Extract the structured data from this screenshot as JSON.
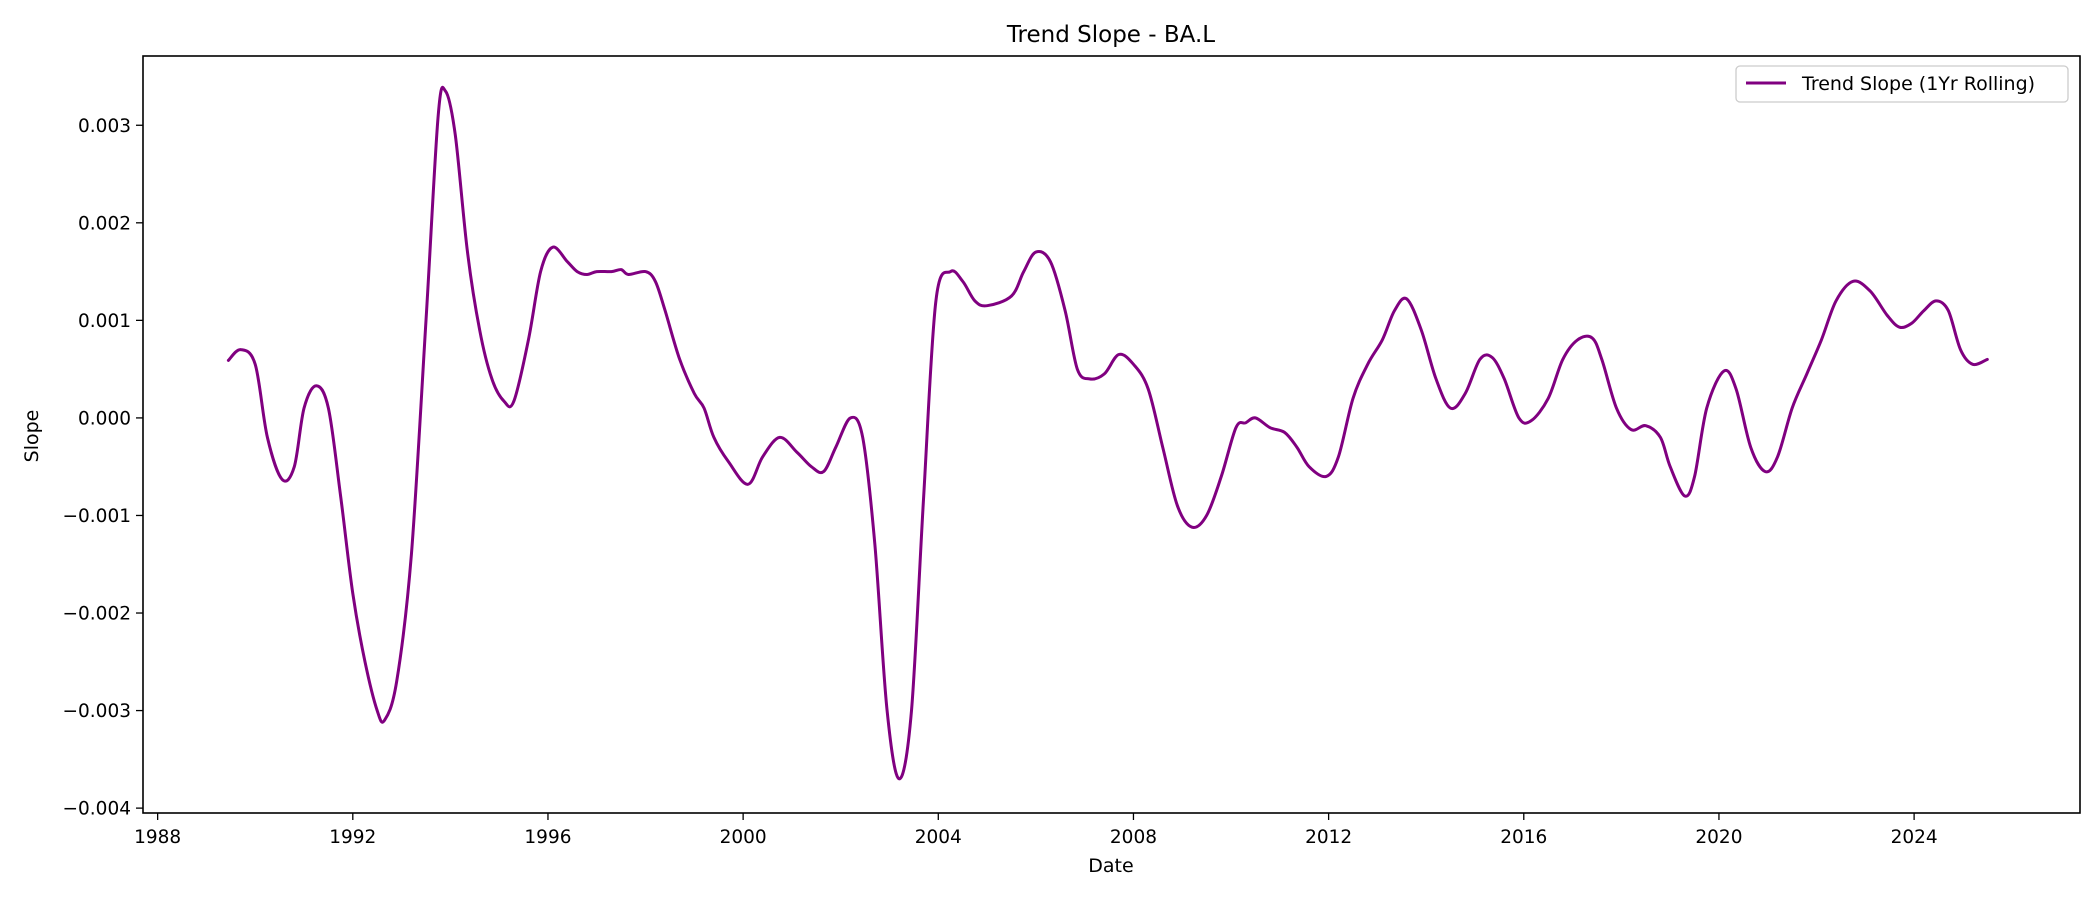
{
  "chart_data": {
    "type": "line",
    "title": "Trend Slope - BA.L",
    "xlabel": "Date",
    "ylabel": "Slope",
    "xlim": [
      1987.7,
      2027.4
    ],
    "ylim": [
      -0.00405,
      0.00371
    ],
    "x_ticks": [
      1988,
      1992,
      1996,
      2000,
      2004,
      2008,
      2012,
      2016,
      2020,
      2024
    ],
    "x_tick_labels": [
      "1988",
      "1992",
      "1996",
      "2000",
      "2004",
      "2008",
      "2012",
      "2016",
      "2020",
      "2024"
    ],
    "y_ticks": [
      -0.004,
      -0.003,
      -0.002,
      -0.001,
      0.0,
      0.001,
      0.002,
      0.003
    ],
    "y_tick_labels": [
      "−0.004",
      "−0.003",
      "−0.002",
      "−0.001",
      "0.000",
      "0.001",
      "0.002",
      "0.003"
    ],
    "grid": false,
    "legend_position": "top-right",
    "series": [
      {
        "name": "Trend Slope (1Yr Rolling)",
        "color": "#800080",
        "points": [
          [
            1989.45,
            0.00059
          ],
          [
            1989.7,
            0.0007
          ],
          [
            1990.0,
            0.00055
          ],
          [
            1990.25,
            -0.0002
          ],
          [
            1990.55,
            -0.00063
          ],
          [
            1990.8,
            -0.0005
          ],
          [
            1991.0,
            0.0001
          ],
          [
            1991.25,
            0.00033
          ],
          [
            1991.5,
            0.0001
          ],
          [
            1991.75,
            -0.0008
          ],
          [
            1992.0,
            -0.0018
          ],
          [
            1992.25,
            -0.0025
          ],
          [
            1992.5,
            -0.003
          ],
          [
            1992.65,
            -0.0031
          ],
          [
            1992.9,
            -0.0027
          ],
          [
            1993.2,
            -0.0014
          ],
          [
            1993.5,
            0.001
          ],
          [
            1993.75,
            0.0031
          ],
          [
            1993.9,
            0.00335
          ],
          [
            1994.1,
            0.0029
          ],
          [
            1994.35,
            0.0017
          ],
          [
            1994.6,
            0.0009
          ],
          [
            1994.85,
            0.0004
          ],
          [
            1995.1,
            0.00017
          ],
          [
            1995.3,
            0.00017
          ],
          [
            1995.6,
            0.0008
          ],
          [
            1995.85,
            0.0015
          ],
          [
            1996.1,
            0.00175
          ],
          [
            1996.4,
            0.0016
          ],
          [
            1996.6,
            0.0015
          ],
          [
            1996.8,
            0.00147
          ],
          [
            1997.0,
            0.0015
          ],
          [
            1997.3,
            0.0015
          ],
          [
            1997.5,
            0.00152
          ],
          [
            1997.65,
            0.00147
          ],
          [
            1998.0,
            0.0015
          ],
          [
            1998.2,
            0.0014
          ],
          [
            1998.4,
            0.0011
          ],
          [
            1998.7,
            0.0006
          ],
          [
            1999.0,
            0.00025
          ],
          [
            1999.2,
            0.0001
          ],
          [
            1999.4,
            -0.0002
          ],
          [
            1999.7,
            -0.00045
          ],
          [
            2000.1,
            -0.00068
          ],
          [
            2000.4,
            -0.0004
          ],
          [
            2000.75,
            -0.0002
          ],
          [
            2001.1,
            -0.00035
          ],
          [
            2001.4,
            -0.0005
          ],
          [
            2001.65,
            -0.00055
          ],
          [
            2001.9,
            -0.0003
          ],
          [
            2002.2,
            0.0
          ],
          [
            2002.45,
            -0.0002
          ],
          [
            2002.7,
            -0.0013
          ],
          [
            2002.95,
            -0.003
          ],
          [
            2003.2,
            -0.0037
          ],
          [
            2003.45,
            -0.003
          ],
          [
            2003.7,
            -0.0008
          ],
          [
            2003.95,
            0.0012
          ],
          [
            2004.25,
            0.0015
          ],
          [
            2004.5,
            0.0014
          ],
          [
            2004.75,
            0.0012
          ],
          [
            2005.0,
            0.00115
          ],
          [
            2005.5,
            0.00125
          ],
          [
            2005.75,
            0.0015
          ],
          [
            2006.0,
            0.0017
          ],
          [
            2006.3,
            0.0016
          ],
          [
            2006.6,
            0.0011
          ],
          [
            2006.85,
            0.0005
          ],
          [
            2007.1,
            0.0004
          ],
          [
            2007.4,
            0.00045
          ],
          [
            2007.7,
            0.00065
          ],
          [
            2008.0,
            0.00055
          ],
          [
            2008.3,
            0.0003
          ],
          [
            2008.6,
            -0.0003
          ],
          [
            2008.9,
            -0.0009
          ],
          [
            2009.2,
            -0.00112
          ],
          [
            2009.5,
            -0.001
          ],
          [
            2009.8,
            -0.0006
          ],
          [
            2010.1,
            -0.0001
          ],
          [
            2010.3,
            -5e-05
          ],
          [
            2010.5,
            0.0
          ],
          [
            2010.8,
            -0.0001
          ],
          [
            2011.1,
            -0.00015
          ],
          [
            2011.35,
            -0.0003
          ],
          [
            2011.6,
            -0.0005
          ],
          [
            2011.95,
            -0.0006
          ],
          [
            2012.2,
            -0.0004
          ],
          [
            2012.5,
            0.0002
          ],
          [
            2012.8,
            0.00055
          ],
          [
            2013.1,
            0.0008
          ],
          [
            2013.35,
            0.0011
          ],
          [
            2013.6,
            0.00122
          ],
          [
            2013.9,
            0.0009
          ],
          [
            2014.2,
            0.0004
          ],
          [
            2014.5,
            0.0001
          ],
          [
            2014.8,
            0.00025
          ],
          [
            2015.1,
            0.0006
          ],
          [
            2015.35,
            0.00062
          ],
          [
            2015.6,
            0.0004
          ],
          [
            2015.9,
            0.0
          ],
          [
            2016.15,
            -3e-05
          ],
          [
            2016.5,
            0.0002
          ],
          [
            2016.8,
            0.0006
          ],
          [
            2017.1,
            0.0008
          ],
          [
            2017.4,
            0.00082
          ],
          [
            2017.6,
            0.0006
          ],
          [
            2017.9,
            0.0001
          ],
          [
            2018.2,
            -0.00012
          ],
          [
            2018.5,
            -8e-05
          ],
          [
            2018.8,
            -0.0002
          ],
          [
            2019.0,
            -0.0005
          ],
          [
            2019.3,
            -0.0008
          ],
          [
            2019.5,
            -0.0006
          ],
          [
            2019.75,
            0.0001
          ],
          [
            2020.1,
            0.00048
          ],
          [
            2020.35,
            0.0003
          ],
          [
            2020.65,
            -0.0003
          ],
          [
            2020.95,
            -0.00055
          ],
          [
            2021.2,
            -0.0004
          ],
          [
            2021.5,
            0.0001
          ],
          [
            2021.8,
            0.00045
          ],
          [
            2022.1,
            0.0008
          ],
          [
            2022.4,
            0.0012
          ],
          [
            2022.75,
            0.0014
          ],
          [
            2023.1,
            0.0013
          ],
          [
            2023.45,
            0.00105
          ],
          [
            2023.7,
            0.00093
          ],
          [
            2023.95,
            0.00097
          ],
          [
            2024.2,
            0.0011
          ],
          [
            2024.45,
            0.0012
          ],
          [
            2024.7,
            0.0011
          ],
          [
            2024.95,
            0.0007
          ],
          [
            2025.2,
            0.00055
          ],
          [
            2025.5,
            0.0006
          ]
        ]
      }
    ]
  }
}
